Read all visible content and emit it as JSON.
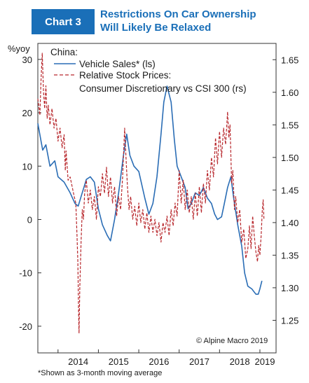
{
  "header": {
    "badge": "Chart 3",
    "title": "Restrictions On Car Ownership\nWill Likely Be Relaxed"
  },
  "colors": {
    "accent": "#1a6fb8",
    "vehicle_sales": "#2a6db5",
    "stock_prices": "#b8282d"
  },
  "footnote": "*Shown as 3-month moving average",
  "chart_data": {
    "type": "line",
    "left_axis_unit": "%yoy",
    "legend_heading": "China:",
    "credit": "© Alpine Macro 2019",
    "x_ticks": [
      "2014",
      "2015",
      "2016",
      "2017",
      "2018",
      "2019"
    ],
    "x_range": [
      2013.5,
      2019.4
    ],
    "y_left": {
      "ticks": [
        "30",
        "20",
        "10",
        "0",
        "-10",
        "-20"
      ],
      "range": [
        -25,
        33
      ]
    },
    "y_right": {
      "ticks": [
        "1.65",
        "1.60",
        "1.55",
        "1.50",
        "1.45",
        "1.40",
        "1.35",
        "1.30",
        "1.25"
      ],
      "range": [
        1.2,
        1.675
      ]
    },
    "series": [
      {
        "name": "Vehicle Sales* (ls)",
        "axis": "left",
        "style": "solid",
        "points": [
          [
            2013.5,
            18
          ],
          [
            2013.62,
            13
          ],
          [
            2013.7,
            14
          ],
          [
            2013.8,
            10
          ],
          [
            2013.92,
            11
          ],
          [
            2014.0,
            8
          ],
          [
            2014.15,
            7
          ],
          [
            2014.3,
            5
          ],
          [
            2014.42,
            3
          ],
          [
            2014.5,
            2.5
          ],
          [
            2014.58,
            4.5
          ],
          [
            2014.7,
            7.5
          ],
          [
            2014.8,
            8
          ],
          [
            2014.9,
            7
          ],
          [
            2015.0,
            2
          ],
          [
            2015.1,
            -1
          ],
          [
            2015.22,
            -3
          ],
          [
            2015.3,
            -4
          ],
          [
            2015.4,
            0
          ],
          [
            2015.5,
            5
          ],
          [
            2015.62,
            12
          ],
          [
            2015.7,
            16
          ],
          [
            2015.78,
            12
          ],
          [
            2015.88,
            10
          ],
          [
            2016.0,
            9
          ],
          [
            2016.15,
            4
          ],
          [
            2016.25,
            1
          ],
          [
            2016.35,
            3
          ],
          [
            2016.45,
            8
          ],
          [
            2016.55,
            16
          ],
          [
            2016.62,
            22
          ],
          [
            2016.7,
            25
          ],
          [
            2016.8,
            22
          ],
          [
            2016.88,
            15
          ],
          [
            2016.95,
            10
          ],
          [
            2017.05,
            8
          ],
          [
            2017.15,
            6
          ],
          [
            2017.22,
            2
          ],
          [
            2017.3,
            3
          ],
          [
            2017.4,
            5
          ],
          [
            2017.5,
            4.5
          ],
          [
            2017.6,
            6
          ],
          [
            2017.7,
            4
          ],
          [
            2017.8,
            3
          ],
          [
            2017.88,
            1
          ],
          [
            2017.95,
            0
          ],
          [
            2018.05,
            0.5
          ],
          [
            2018.12,
            3
          ],
          [
            2018.2,
            6
          ],
          [
            2018.28,
            8
          ],
          [
            2018.35,
            4
          ],
          [
            2018.45,
            -1
          ],
          [
            2018.55,
            -5
          ],
          [
            2018.62,
            -10
          ],
          [
            2018.7,
            -12.5
          ],
          [
            2018.8,
            -13
          ],
          [
            2018.9,
            -14
          ],
          [
            2018.96,
            -14
          ],
          [
            2019.0,
            -13
          ],
          [
            2019.05,
            -11.5
          ]
        ]
      },
      {
        "name": "Relative Stock Prices: Consumer Discretionary vs CSI 300 (rs)",
        "axis": "right",
        "style": "dashed",
        "points": [
          [
            2013.5,
            1.59
          ],
          [
            2013.55,
            1.565
          ],
          [
            2013.58,
            1.62
          ],
          [
            2013.61,
            1.66
          ],
          [
            2013.64,
            1.6
          ],
          [
            2013.67,
            1.575
          ],
          [
            2013.7,
            1.61
          ],
          [
            2013.73,
            1.56
          ],
          [
            2013.76,
            1.58
          ],
          [
            2013.8,
            1.55
          ],
          [
            2013.85,
            1.575
          ],
          [
            2013.9,
            1.545
          ],
          [
            2013.95,
            1.56
          ],
          [
            2014.0,
            1.525
          ],
          [
            2014.05,
            1.545
          ],
          [
            2014.1,
            1.515
          ],
          [
            2014.15,
            1.535
          ],
          [
            2014.18,
            1.48
          ],
          [
            2014.2,
            1.51
          ],
          [
            2014.25,
            1.465
          ],
          [
            2014.3,
            1.47
          ],
          [
            2014.35,
            1.455
          ],
          [
            2014.4,
            1.44
          ],
          [
            2014.44,
            1.43
          ],
          [
            2014.47,
            1.38
          ],
          [
            2014.49,
            1.34
          ],
          [
            2014.51,
            1.26
          ],
          [
            2014.52,
            1.23
          ],
          [
            2014.54,
            1.3
          ],
          [
            2014.57,
            1.37
          ],
          [
            2014.6,
            1.42
          ],
          [
            2014.63,
            1.405
          ],
          [
            2014.66,
            1.445
          ],
          [
            2014.7,
            1.465
          ],
          [
            2014.75,
            1.43
          ],
          [
            2014.8,
            1.45
          ],
          [
            2014.85,
            1.42
          ],
          [
            2014.9,
            1.44
          ],
          [
            2014.95,
            1.405
          ],
          [
            2015.0,
            1.455
          ],
          [
            2015.05,
            1.44
          ],
          [
            2015.1,
            1.475
          ],
          [
            2015.15,
            1.445
          ],
          [
            2015.2,
            1.485
          ],
          [
            2015.25,
            1.44
          ],
          [
            2015.3,
            1.47
          ],
          [
            2015.35,
            1.43
          ],
          [
            2015.4,
            1.455
          ],
          [
            2015.45,
            1.41
          ],
          [
            2015.5,
            1.44
          ],
          [
            2015.55,
            1.42
          ],
          [
            2015.6,
            1.47
          ],
          [
            2015.65,
            1.545
          ],
          [
            2015.68,
            1.505
          ],
          [
            2015.72,
            1.455
          ],
          [
            2015.76,
            1.42
          ],
          [
            2015.8,
            1.44
          ],
          [
            2015.85,
            1.405
          ],
          [
            2015.9,
            1.425
          ],
          [
            2015.95,
            1.395
          ],
          [
            2016.0,
            1.43
          ],
          [
            2016.05,
            1.4
          ],
          [
            2016.1,
            1.42
          ],
          [
            2016.15,
            1.39
          ],
          [
            2016.2,
            1.415
          ],
          [
            2016.25,
            1.385
          ],
          [
            2016.3,
            1.41
          ],
          [
            2016.35,
            1.385
          ],
          [
            2016.4,
            1.405
          ],
          [
            2016.45,
            1.38
          ],
          [
            2016.5,
            1.4
          ],
          [
            2016.55,
            1.37
          ],
          [
            2016.6,
            1.4
          ],
          [
            2016.65,
            1.385
          ],
          [
            2016.7,
            1.41
          ],
          [
            2016.75,
            1.38
          ],
          [
            2016.8,
            1.42
          ],
          [
            2016.85,
            1.395
          ],
          [
            2016.9,
            1.43
          ],
          [
            2016.95,
            1.41
          ],
          [
            2017.0,
            1.48
          ],
          [
            2017.05,
            1.43
          ],
          [
            2017.1,
            1.465
          ],
          [
            2017.15,
            1.42
          ],
          [
            2017.2,
            1.45
          ],
          [
            2017.25,
            1.415
          ],
          [
            2017.3,
            1.44
          ],
          [
            2017.35,
            1.405
          ],
          [
            2017.4,
            1.445
          ],
          [
            2017.45,
            1.41
          ],
          [
            2017.5,
            1.455
          ],
          [
            2017.55,
            1.415
          ],
          [
            2017.6,
            1.46
          ],
          [
            2017.65,
            1.43
          ],
          [
            2017.7,
            1.48
          ],
          [
            2017.75,
            1.45
          ],
          [
            2017.8,
            1.5
          ],
          [
            2017.85,
            1.47
          ],
          [
            2017.9,
            1.53
          ],
          [
            2017.95,
            1.49
          ],
          [
            2018.0,
            1.54
          ],
          [
            2018.05,
            1.5
          ],
          [
            2018.1,
            1.545
          ],
          [
            2018.15,
            1.52
          ],
          [
            2018.2,
            1.57
          ],
          [
            2018.23,
            1.53
          ],
          [
            2018.26,
            1.55
          ],
          [
            2018.3,
            1.46
          ],
          [
            2018.33,
            1.48
          ],
          [
            2018.37,
            1.42
          ],
          [
            2018.4,
            1.44
          ],
          [
            2018.45,
            1.4
          ],
          [
            2018.5,
            1.42
          ],
          [
            2018.55,
            1.37
          ],
          [
            2018.6,
            1.39
          ],
          [
            2018.65,
            1.345
          ],
          [
            2018.7,
            1.36
          ],
          [
            2018.74,
            1.395
          ],
          [
            2018.78,
            1.36
          ],
          [
            2018.82,
            1.41
          ],
          [
            2018.86,
            1.38
          ],
          [
            2018.9,
            1.355
          ],
          [
            2018.94,
            1.34
          ],
          [
            2018.97,
            1.365
          ],
          [
            2019.0,
            1.35
          ],
          [
            2019.03,
            1.38
          ],
          [
            2019.06,
            1.42
          ],
          [
            2019.08,
            1.435
          ],
          [
            2019.1,
            1.405
          ]
        ]
      }
    ],
    "grid": false,
    "legend_position": "top-left"
  }
}
